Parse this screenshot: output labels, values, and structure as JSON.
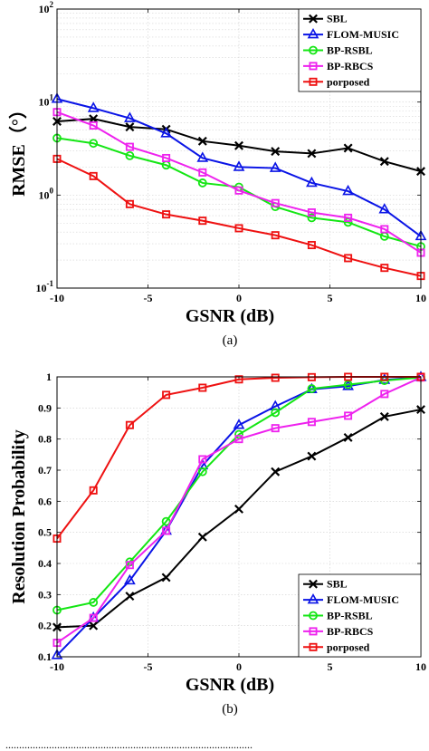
{
  "chart_data": [
    {
      "type": "line",
      "caption": "(a)",
      "xlabel": "GSNR (dB)",
      "ylabel": "RMSE（°）",
      "xlim": [
        -10,
        10
      ],
      "ylim": [
        0.1,
        100
      ],
      "yscale": "log",
      "xticks": [
        -10,
        -5,
        0,
        5,
        10
      ],
      "xtick_labels": [
        "-10",
        "-5",
        "0",
        "5",
        "10"
      ],
      "yticks": [
        0.1,
        1,
        10,
        100
      ],
      "ytick_labels": [
        {
          "base": "10",
          "exp": "-1"
        },
        {
          "base": "10",
          "exp": "0"
        },
        {
          "base": "10",
          "exp": "1"
        },
        {
          "base": "10",
          "exp": "2"
        }
      ],
      "grid": true,
      "legend_position": "top-right",
      "x": [
        -10,
        -8,
        -6,
        -4,
        -2,
        0,
        2,
        4,
        6,
        8,
        10
      ],
      "series": [
        {
          "name": "SBL",
          "color": "#000000",
          "marker": "x",
          "values": [
            6.2,
            6.6,
            5.4,
            5.1,
            3.8,
            3.4,
            2.95,
            2.8,
            3.2,
            2.3,
            1.8
          ]
        },
        {
          "name": "FLOM-MUSIC",
          "color": "#0a14e6",
          "marker": "triangle",
          "values": [
            10.8,
            8.6,
            6.7,
            4.6,
            2.5,
            2.0,
            1.95,
            1.35,
            1.1,
            0.7,
            0.36
          ]
        },
        {
          "name": "BP-RSBL",
          "color": "#14e614",
          "marker": "circle",
          "values": [
            4.1,
            3.6,
            2.65,
            2.1,
            1.35,
            1.22,
            0.75,
            0.57,
            0.51,
            0.36,
            0.28
          ]
        },
        {
          "name": "BP-RBCS",
          "color": "#ee22ee",
          "marker": "square",
          "values": [
            7.8,
            5.6,
            3.3,
            2.5,
            1.75,
            1.12,
            0.82,
            0.65,
            0.57,
            0.43,
            0.24
          ]
        },
        {
          "name": "porposed",
          "color": "#ee1111",
          "marker": "square",
          "values": [
            2.45,
            1.6,
            0.8,
            0.62,
            0.53,
            0.44,
            0.37,
            0.29,
            0.21,
            0.165,
            0.135
          ]
        }
      ]
    },
    {
      "type": "line",
      "caption": "(b)",
      "xlabel": "GSNR (dB)",
      "ylabel": "Resolution Probability",
      "xlim": [
        -10,
        10
      ],
      "ylim": [
        0.1,
        1
      ],
      "xticks": [
        -10,
        -5,
        0,
        5,
        10
      ],
      "xtick_labels": [
        "-10",
        "-5",
        "0",
        "5",
        "10"
      ],
      "yticks": [
        0.1,
        0.2,
        0.3,
        0.4,
        0.5,
        0.6,
        0.7,
        0.8,
        0.9,
        1
      ],
      "ytick_labels": [
        "0.1",
        "0.2",
        "0.3",
        "0.4",
        "0.5",
        "0.6",
        "0.7",
        "0.8",
        "0.9",
        "1"
      ],
      "grid": true,
      "legend_position": "bottom-right",
      "x": [
        -10,
        -8,
        -6,
        -4,
        -2,
        0,
        2,
        4,
        6,
        8,
        10
      ],
      "series": [
        {
          "name": "SBL",
          "color": "#000000",
          "marker": "x",
          "values": [
            0.195,
            0.2,
            0.295,
            0.355,
            0.485,
            0.575,
            0.695,
            0.745,
            0.805,
            0.872,
            0.895
          ]
        },
        {
          "name": "FLOM-MUSIC",
          "color": "#0a14e6",
          "marker": "triangle",
          "values": [
            0.105,
            0.225,
            0.345,
            0.505,
            0.715,
            0.845,
            0.905,
            0.96,
            0.97,
            0.99,
            0.999
          ]
        },
        {
          "name": "BP-RSBL",
          "color": "#14e614",
          "marker": "circle",
          "values": [
            0.25,
            0.275,
            0.405,
            0.535,
            0.695,
            0.815,
            0.885,
            0.962,
            0.975,
            0.988,
            0.998
          ]
        },
        {
          "name": "BP-RBCS",
          "color": "#ee22ee",
          "marker": "square",
          "values": [
            0.145,
            0.225,
            0.395,
            0.505,
            0.735,
            0.8,
            0.835,
            0.855,
            0.875,
            0.945,
            0.998
          ]
        },
        {
          "name": "porposed",
          "color": "#ee1111",
          "marker": "square",
          "values": [
            0.48,
            0.635,
            0.845,
            0.942,
            0.965,
            0.992,
            0.997,
            0.999,
            1.0,
            1.0,
            1.0
          ]
        }
      ]
    }
  ],
  "footer_text": "..........................................................................................."
}
